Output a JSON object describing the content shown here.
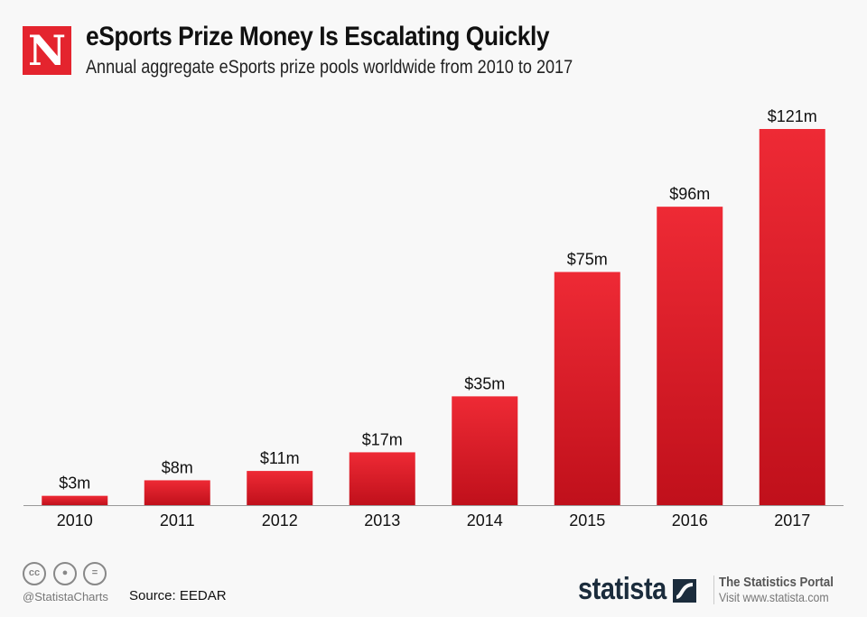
{
  "header": {
    "logo_letter": "N",
    "title": "eSports Prize Money Is Escalating Quickly",
    "subtitle": "Annual aggregate eSports prize pools worldwide from 2010 to 2017"
  },
  "footer": {
    "license_icons": [
      "cc-icon",
      "attribution-icon",
      "no-derivatives-icon"
    ],
    "cc_label": "cc",
    "handle": "@StatistaCharts",
    "source": "Source: EEDAR",
    "brand": "statista",
    "portal": "The Statistics Portal",
    "visit": "Visit www.statista.com"
  },
  "chart_data": {
    "type": "bar",
    "title": "eSports Prize Money Is Escalating Quickly",
    "categories": [
      "2010",
      "2011",
      "2012",
      "2013",
      "2014",
      "2015",
      "2016",
      "2017"
    ],
    "values": [
      3,
      8,
      11,
      17,
      35,
      75,
      96,
      121
    ],
    "data_labels": [
      "$3m",
      "$8m",
      "$11m",
      "$17m",
      "$35m",
      "$75m",
      "$96m",
      "$121m"
    ],
    "unit": "million USD",
    "ylim": [
      0,
      121
    ],
    "grid": false,
    "colors": {
      "bar_top": "#ee2a35",
      "bar_bottom": "#c0101b",
      "logo": "#e4242e",
      "brand": "#1b2c3c"
    }
  }
}
